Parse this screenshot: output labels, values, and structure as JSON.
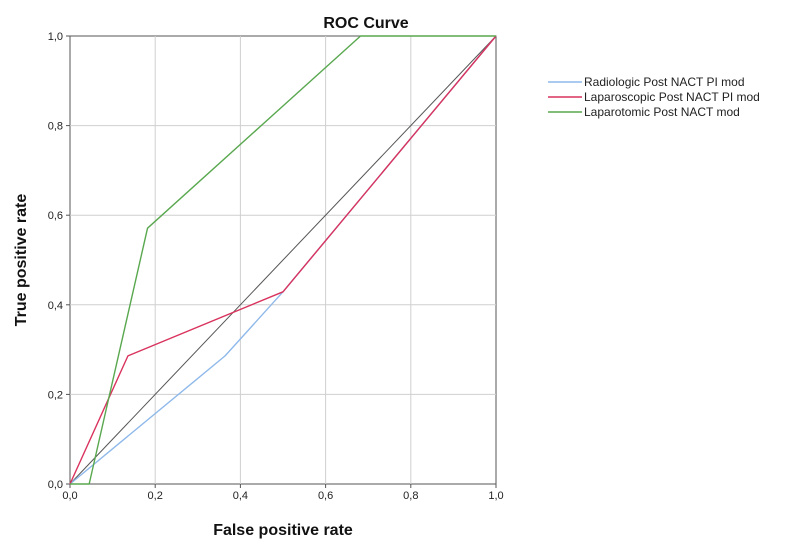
{
  "chart_data": {
    "type": "line",
    "title": "ROC Curve",
    "xlabel": "False positive rate",
    "ylabel": "True positive rate",
    "xlim": [
      0,
      1
    ],
    "ylim": [
      0,
      1
    ],
    "x_ticks": [
      "0,0",
      "0,2",
      "0,4",
      "0,6",
      "0,8",
      "1,0"
    ],
    "y_ticks": [
      "0,0",
      "0,2",
      "0,4",
      "0,6",
      "0,8",
      "1,0"
    ],
    "grid": true,
    "legend_position": "right",
    "series": [
      {
        "name": "Radiologic Post NACT PI mod",
        "color": "#8fb9ea",
        "points": [
          [
            0,
            0
          ],
          [
            0.364,
            0.286
          ],
          [
            0.5,
            0.429
          ],
          [
            1,
            1
          ]
        ]
      },
      {
        "name": "Laparoscopic Post NACT PI mod",
        "color": "#d9325d",
        "points": [
          [
            0,
            0
          ],
          [
            0.136,
            0.286
          ],
          [
            0.5,
            0.429
          ],
          [
            1,
            1
          ]
        ]
      },
      {
        "name": "Laparotomic Post NACT mod",
        "color": "#59a84f",
        "points": [
          [
            0,
            0
          ],
          [
            0.045,
            0
          ],
          [
            0.182,
            0.571
          ],
          [
            0.682,
            1
          ],
          [
            1,
            1
          ]
        ]
      }
    ],
    "reference_line": {
      "color": "#555555",
      "points": [
        [
          0,
          0
        ],
        [
          1,
          1
        ]
      ]
    }
  }
}
